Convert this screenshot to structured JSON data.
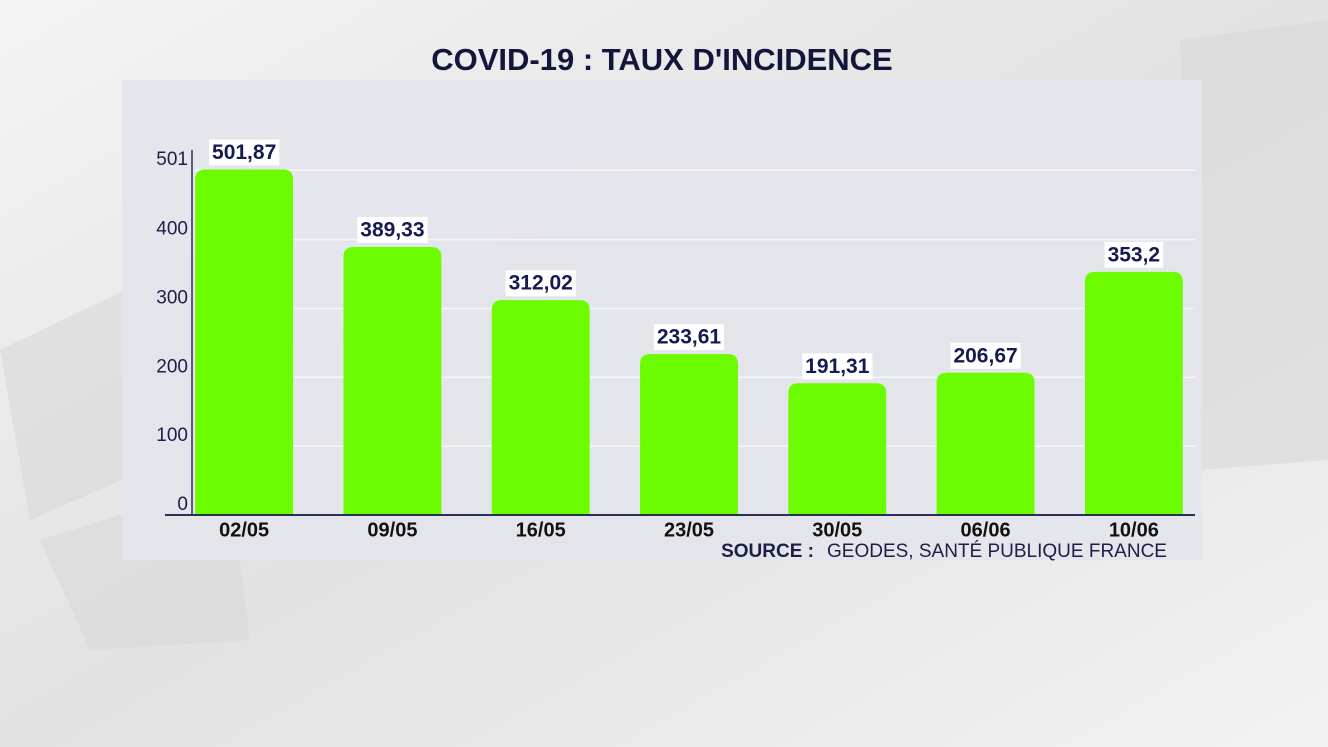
{
  "chart_data": {
    "type": "bar",
    "title": "COVID-19 : TAUX D'INCIDENCE",
    "categories": [
      "02/05",
      "09/05",
      "16/05",
      "23/05",
      "30/05",
      "06/06",
      "10/06"
    ],
    "values": [
      501.87,
      389.33,
      312.02,
      233.61,
      191.31,
      206.67,
      353.2
    ],
    "value_labels": [
      "501,87",
      "389,33",
      "312,02",
      "233,61",
      "191,31",
      "206,67",
      "353,2"
    ],
    "color": "#6cfc00",
    "ylim": [
      0,
      520
    ],
    "yticks": [
      0,
      100,
      200,
      300,
      400,
      501
    ],
    "grid": true,
    "source_label": "SOURCE :",
    "source": "GEODES, SANTÉ PUBLIQUE FRANCE"
  }
}
